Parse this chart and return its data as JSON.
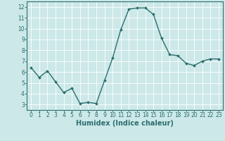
{
  "x": [
    0,
    1,
    2,
    3,
    4,
    5,
    6,
    7,
    8,
    9,
    10,
    11,
    12,
    13,
    14,
    15,
    16,
    17,
    18,
    19,
    20,
    21,
    22,
    23
  ],
  "y": [
    6.4,
    5.5,
    6.1,
    5.1,
    4.1,
    4.5,
    3.1,
    3.2,
    3.1,
    5.2,
    7.3,
    9.9,
    11.8,
    11.9,
    11.9,
    11.3,
    9.1,
    7.6,
    7.5,
    6.8,
    6.6,
    7.0,
    7.2,
    7.2
  ],
  "line_color": "#2d6e6e",
  "marker": "D",
  "marker_size": 2,
  "bg_color": "#cce8e8",
  "grid_color": "#ffffff",
  "xlabel": "Humidex (Indice chaleur)",
  "ylabel": "",
  "title": "",
  "xlim": [
    -0.5,
    23.5
  ],
  "ylim": [
    2.5,
    12.5
  ],
  "yticks": [
    3,
    4,
    5,
    6,
    7,
    8,
    9,
    10,
    11,
    12
  ],
  "xticks": [
    0,
    1,
    2,
    3,
    4,
    5,
    6,
    7,
    8,
    9,
    10,
    11,
    12,
    13,
    14,
    15,
    16,
    17,
    18,
    19,
    20,
    21,
    22,
    23
  ],
  "tick_label_fontsize": 5.5,
  "xlabel_fontsize": 7,
  "tick_color": "#2d6e6e",
  "axis_color": "#2d6e6e",
  "linewidth": 1.0
}
